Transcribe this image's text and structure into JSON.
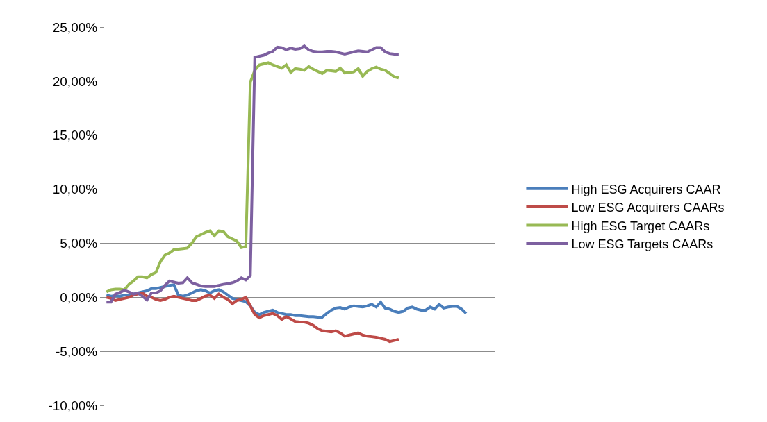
{
  "chart_data": {
    "type": "line",
    "categories": [
      null,
      null,
      null,
      null,
      null,
      null,
      null,
      null,
      null,
      null,
      null,
      null,
      null,
      null,
      null,
      null,
      null,
      null,
      null,
      null,
      null,
      null,
      null,
      null,
      null,
      null,
      null,
      null,
      null,
      null,
      null,
      null,
      null,
      null,
      null,
      null,
      null,
      null,
      null,
      null,
      null,
      null,
      null,
      null,
      null,
      null,
      null,
      null,
      null,
      null,
      null,
      null,
      null,
      null,
      null,
      null,
      null,
      null,
      null,
      null,
      null,
      null,
      null,
      null,
      null,
      null,
      null,
      null,
      null,
      null,
      null,
      null,
      null,
      null,
      null,
      null,
      null,
      null,
      null,
      null,
      null,
      null,
      null,
      null,
      null,
      null,
      null
    ],
    "series": [
      {
        "name": "High ESG Acquirers CAAR",
        "color": "#4a7ebb",
        "values": [
          0.2,
          0.1,
          0.15,
          0.1,
          0.2,
          0.2,
          0.3,
          0.4,
          0.5,
          0.6,
          0.8,
          0.8,
          0.9,
          1.0,
          1.1,
          1.15,
          0.2,
          0.1,
          0.2,
          0.4,
          0.6,
          0.7,
          0.6,
          0.4,
          0.6,
          0.7,
          0.5,
          0.2,
          -0.1,
          -0.2,
          -0.3,
          -0.4,
          -0.8,
          -1.4,
          -1.6,
          -1.4,
          -1.3,
          -1.2,
          -1.4,
          -1.5,
          -1.6,
          -1.6,
          -1.7,
          -1.7,
          -1.75,
          -1.8,
          -1.8,
          -1.85,
          -1.85,
          -1.5,
          -1.2,
          -1.0,
          -0.95,
          -1.1,
          -0.9,
          -0.8,
          -0.85,
          -0.9,
          -0.8,
          -0.65,
          -0.9,
          -0.45,
          -1.0,
          -1.1,
          -1.3,
          -1.4,
          -1.3,
          -1.0,
          -0.9,
          -1.1,
          -1.2,
          -1.2,
          -0.9,
          -1.1,
          -0.65,
          -1.0,
          -0.9,
          -0.85,
          -0.85,
          -1.1,
          -1.5,
          null,
          null,
          null,
          null,
          null,
          null
        ]
      },
      {
        "name": "Low ESG Acquirers CAARs",
        "color": "#be4b48",
        "values": [
          0,
          -0.1,
          -0.3,
          -0.2,
          -0.1,
          0.0,
          0.2,
          0.3,
          0.4,
          0.1,
          0,
          -0.2,
          -0.3,
          -0.2,
          0,
          0.1,
          0,
          -0.1,
          -0.2,
          -0.3,
          -0.3,
          -0.1,
          0.1,
          0.2,
          -0.1,
          0.3,
          0,
          -0.2,
          -0.6,
          -0.3,
          -0.2,
          0,
          -0.8,
          -1.6,
          -1.9,
          -1.7,
          -1.6,
          -1.5,
          -1.7,
          -2.05,
          -1.8,
          -2.0,
          -2.25,
          -2.3,
          -2.3,
          -2.4,
          -2.6,
          -2.9,
          -3.1,
          -3.15,
          -3.2,
          -3.1,
          -3.3,
          -3.6,
          -3.5,
          -3.4,
          -3.3,
          -3.5,
          -3.6,
          -3.65,
          -3.7,
          -3.8,
          -3.9,
          -4.1,
          -4.0,
          -3.9,
          null,
          null,
          null,
          null,
          null,
          null,
          null,
          null,
          null,
          null,
          null,
          null,
          null,
          null,
          null,
          null,
          null,
          null,
          null,
          null,
          null
        ]
      },
      {
        "name": "High ESG Target CAARs",
        "color": "#98b954",
        "values": [
          0.5,
          0.7,
          0.75,
          0.75,
          0.7,
          1.2,
          1.5,
          1.9,
          1.9,
          1.8,
          2.1,
          2.3,
          3.3,
          3.9,
          4.1,
          4.4,
          4.45,
          4.5,
          4.55,
          5.0,
          5.6,
          5.8,
          6.0,
          6.15,
          5.7,
          6.15,
          6.1,
          5.6,
          5.4,
          5.2,
          4.6,
          4.7,
          19.9,
          21.0,
          21.5,
          21.6,
          21.7,
          21.5,
          21.35,
          21.2,
          21.5,
          20.8,
          21.15,
          21.1,
          21.0,
          21.35,
          21.1,
          20.9,
          20.7,
          21.0,
          20.95,
          20.9,
          21.2,
          20.75,
          20.8,
          20.85,
          21.15,
          20.45,
          20.9,
          21.15,
          21.3,
          21.1,
          21.0,
          20.7,
          20.4,
          20.3,
          null,
          null,
          null,
          null,
          null,
          null,
          null,
          null,
          null,
          null,
          null,
          null,
          null,
          null,
          null,
          null,
          null,
          null,
          null,
          null,
          null
        ]
      },
      {
        "name": "Low ESG Targets CAARs",
        "color": "#7d60a0",
        "values": [
          -0.45,
          -0.45,
          0.3,
          0.45,
          0.65,
          0.5,
          0.3,
          0.4,
          0.1,
          -0.25,
          0.4,
          0.4,
          0.6,
          1.1,
          1.5,
          1.4,
          1.3,
          1.35,
          1.8,
          1.35,
          1.2,
          1.05,
          1.0,
          1.0,
          1.0,
          1.1,
          1.2,
          1.25,
          1.35,
          1.5,
          1.8,
          1.6,
          2.0,
          22.2,
          22.3,
          22.4,
          22.6,
          22.75,
          23.15,
          23.1,
          22.9,
          23.05,
          22.95,
          23.0,
          23.25,
          22.9,
          22.75,
          22.7,
          22.7,
          22.75,
          22.75,
          22.7,
          22.6,
          22.5,
          22.6,
          22.7,
          22.8,
          22.75,
          22.7,
          22.9,
          23.1,
          23.1,
          22.7,
          22.55,
          22.5,
          22.5,
          null,
          null,
          null,
          null,
          null,
          null,
          null,
          null,
          null,
          null,
          null,
          null,
          null,
          null,
          null,
          null,
          null,
          null,
          null,
          null,
          null
        ]
      }
    ],
    "ylim": [
      -10,
      25
    ],
    "yticks": [
      {
        "value": -10,
        "label": "-10,00%"
      },
      {
        "value": -5,
        "label": "-5,00%"
      },
      {
        "value": 0,
        "label": "0,00%"
      },
      {
        "value": 5,
        "label": "5,00%"
      },
      {
        "value": 10,
        "label": "10,00%"
      },
      {
        "value": 15,
        "label": "15,00%"
      },
      {
        "value": 20,
        "label": "20,00%"
      },
      {
        "value": 25,
        "label": "25,00%"
      }
    ],
    "grid": "y",
    "legend": "right",
    "tick_labels": "y",
    "marker": "none",
    "line_style": "solid"
  }
}
